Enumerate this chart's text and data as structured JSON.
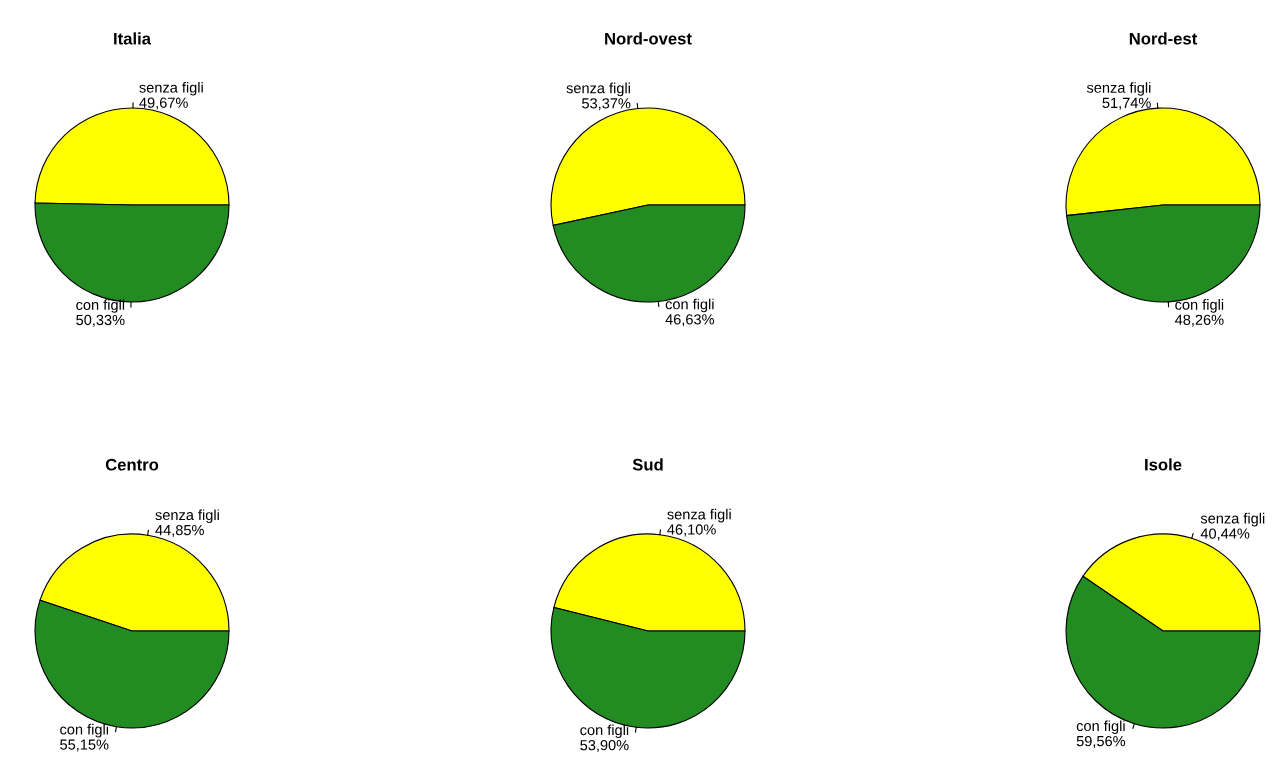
{
  "chart_data": [
    {
      "type": "pie",
      "title": "Italia",
      "categories": [
        "senza figli",
        "con figli"
      ],
      "values": [
        49.67,
        50.33
      ],
      "value_labels": [
        "49,67%",
        "50,33%"
      ],
      "colors": [
        "#ffff00",
        "#228b22"
      ]
    },
    {
      "type": "pie",
      "title": "Nord-ovest",
      "categories": [
        "senza figli",
        "con figli"
      ],
      "values": [
        53.37,
        46.63
      ],
      "value_labels": [
        "53,37%",
        "46,63%"
      ],
      "colors": [
        "#ffff00",
        "#228b22"
      ]
    },
    {
      "type": "pie",
      "title": "Nord-est",
      "categories": [
        "senza figli",
        "con figli"
      ],
      "values": [
        51.74,
        48.26
      ],
      "value_labels": [
        "51,74%",
        "48,26%"
      ],
      "colors": [
        "#ffff00",
        "#228b22"
      ]
    },
    {
      "type": "pie",
      "title": "Centro",
      "categories": [
        "senza figli",
        "con figli"
      ],
      "values": [
        44.85,
        55.15
      ],
      "value_labels": [
        "44,85%",
        "55,15%"
      ],
      "colors": [
        "#ffff00",
        "#228b22"
      ]
    },
    {
      "type": "pie",
      "title": "Sud",
      "categories": [
        "senza figli",
        "con figli"
      ],
      "values": [
        46.1,
        53.9
      ],
      "value_labels": [
        "46,10%",
        "53,90%"
      ],
      "colors": [
        "#ffff00",
        "#228b22"
      ]
    },
    {
      "type": "pie",
      "title": "Isole",
      "categories": [
        "senza figli",
        "con figli"
      ],
      "values": [
        40.44,
        59.56
      ],
      "value_labels": [
        "40,44%",
        "59,56%"
      ],
      "colors": [
        "#ffff00",
        "#228b22"
      ]
    }
  ]
}
